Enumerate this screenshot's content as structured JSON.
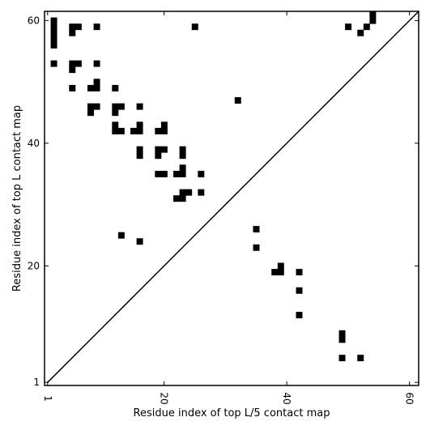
{
  "chart_data": {
    "type": "heatmap",
    "title": "",
    "xlabel": "Residue index of top L/5 contact map",
    "ylabel": "Residue index of top L contact map",
    "xlim": [
      0.5,
      61.5
    ],
    "ylim": [
      0.5,
      61.5
    ],
    "xticks": [
      1,
      20,
      40,
      60
    ],
    "yticks": [
      1,
      20,
      40,
      60
    ],
    "grid": false,
    "diagonal_line": true,
    "cell_color": "#000000",
    "background_color": "#ffffff",
    "upper_contacts": [
      [
        2,
        60
      ],
      [
        2,
        59
      ],
      [
        2,
        58
      ],
      [
        2,
        57
      ],
      [
        2,
        56
      ],
      [
        2,
        53
      ],
      [
        5,
        59
      ],
      [
        5,
        58
      ],
      [
        6,
        59
      ],
      [
        5,
        53
      ],
      [
        5,
        52
      ],
      [
        6,
        53
      ],
      [
        5,
        49
      ],
      [
        9,
        59
      ],
      [
        9,
        53
      ],
      [
        9,
        50
      ],
      [
        8,
        49
      ],
      [
        9,
        49
      ],
      [
        8,
        46
      ],
      [
        9,
        46
      ],
      [
        8,
        45
      ],
      [
        12,
        49
      ],
      [
        12,
        46
      ],
      [
        13,
        46
      ],
      [
        12,
        45
      ],
      [
        12,
        43
      ],
      [
        12,
        42
      ],
      [
        13,
        42
      ],
      [
        15,
        42
      ],
      [
        16,
        42
      ],
      [
        16,
        43
      ],
      [
        16,
        46
      ],
      [
        19,
        42
      ],
      [
        20,
        42
      ],
      [
        20,
        43
      ],
      [
        16,
        39
      ],
      [
        16,
        38
      ],
      [
        19,
        39
      ],
      [
        20,
        39
      ],
      [
        19,
        38
      ],
      [
        19,
        35
      ],
      [
        20,
        35
      ],
      [
        22,
        35
      ],
      [
        23,
        35
      ],
      [
        23,
        36
      ],
      [
        23,
        38
      ],
      [
        23,
        39
      ],
      [
        26,
        35
      ],
      [
        22,
        31
      ],
      [
        23,
        31
      ],
      [
        23,
        32
      ],
      [
        24,
        32
      ],
      [
        26,
        32
      ],
      [
        25,
        59
      ],
      [
        32,
        47
      ],
      [
        13,
        25
      ],
      [
        16,
        24
      ]
    ],
    "lower_contacts": [
      [
        50,
        59
      ],
      [
        52,
        58
      ],
      [
        53,
        59
      ],
      [
        54,
        60
      ],
      [
        54,
        61
      ],
      [
        35,
        26
      ],
      [
        35,
        23
      ],
      [
        38,
        19
      ],
      [
        39,
        19
      ],
      [
        39,
        20
      ],
      [
        42,
        19
      ],
      [
        42,
        16
      ],
      [
        42,
        12
      ],
      [
        49,
        8
      ],
      [
        49,
        9
      ],
      [
        49,
        5
      ],
      [
        52,
        5
      ]
    ]
  }
}
